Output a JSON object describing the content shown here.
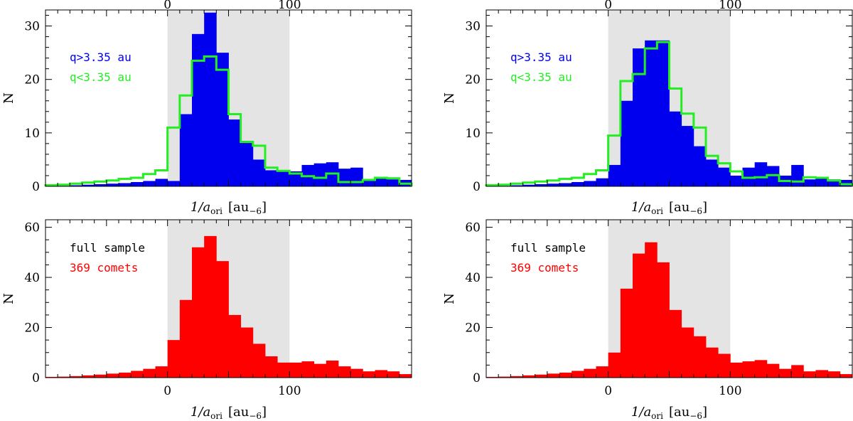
{
  "figure": {
    "shade_range": [
      0,
      100
    ],
    "xlim": [
      -100,
      200
    ],
    "colors": {
      "blue": "#0000ee",
      "green": "#22ee22",
      "red": "#ff0000",
      "shade": "#e4e4e4"
    }
  },
  "chart_data": [
    {
      "id": "tl",
      "type": "bar",
      "ylabel": "N",
      "xlabel": {
        "main": "1/a",
        "sub": "ori",
        "unit": "[au",
        "unit_sub": "−6",
        "close": "]"
      },
      "ylim": [
        0,
        33
      ],
      "yticks": [
        "0",
        "10",
        "20",
        "30"
      ],
      "xticks_top": [
        "0",
        "100"
      ],
      "xticks_bottom": [],
      "legend": [
        {
          "text": "q>3.35 au",
          "color": "#0000ee"
        },
        {
          "text": "q<3.35 au",
          "color": "#22ee22"
        }
      ],
      "bin_edges": [
        -100,
        -90,
        -80,
        -70,
        -60,
        -50,
        -40,
        -30,
        -20,
        -10,
        0,
        10,
        20,
        30,
        40,
        50,
        60,
        70,
        80,
        90,
        100,
        110,
        120,
        130,
        140,
        150,
        160,
        170,
        180,
        190,
        200
      ],
      "series": [
        {
          "name": "q>3.35 au",
          "style": "filled",
          "color": "#0000ee",
          "values": [
            0.1,
            0.1,
            0.2,
            0.3,
            0.4,
            0.5,
            0.6,
            0.8,
            1.0,
            1.4,
            1.0,
            13.5,
            28.5,
            32.5,
            25.0,
            12.5,
            8.5,
            5.0,
            3.0,
            2.8,
            2.8,
            4.0,
            4.3,
            4.5,
            3.3,
            3.5,
            1.0,
            1.7,
            1.3,
            1.2
          ]
        },
        {
          "name": "q<3.35 au",
          "style": "step",
          "color": "#22ee22",
          "values": [
            0.2,
            0.3,
            0.5,
            0.7,
            0.9,
            1.1,
            1.4,
            1.6,
            2.3,
            3.0,
            11.0,
            17.0,
            23.5,
            24.3,
            21.8,
            13.5,
            8.3,
            7.6,
            3.5,
            2.9,
            2.4,
            1.9,
            1.6,
            2.4,
            0.8,
            0.8,
            1.2,
            1.6,
            1.5,
            0.5
          ]
        }
      ]
    },
    {
      "id": "tr",
      "type": "bar",
      "ylabel": "N",
      "xlabel": {
        "main": "1/a",
        "sub": "ori",
        "unit": "[au",
        "unit_sub": "−6",
        "close": "]"
      },
      "ylim": [
        0,
        33
      ],
      "yticks": [
        "0",
        "10",
        "20",
        "30"
      ],
      "xticks_top": [
        "0",
        "100"
      ],
      "xticks_bottom": [],
      "legend": [
        {
          "text": "q>3.35 au",
          "color": "#0000ee"
        },
        {
          "text": "q<3.35 au",
          "color": "#22ee22"
        }
      ],
      "bin_edges": [
        -100,
        -90,
        -80,
        -70,
        -60,
        -50,
        -40,
        -30,
        -20,
        -10,
        0,
        10,
        20,
        30,
        40,
        50,
        60,
        70,
        80,
        90,
        100,
        110,
        120,
        130,
        140,
        150,
        160,
        170,
        180,
        190,
        200
      ],
      "series": [
        {
          "name": "q>3.35 au",
          "style": "filled",
          "color": "#0000ee",
          "values": [
            0.1,
            0.1,
            0.2,
            0.3,
            0.4,
            0.5,
            0.6,
            0.8,
            1.0,
            1.5,
            4.0,
            16.0,
            25.8,
            27.3,
            27.3,
            14.0,
            11.3,
            7.5,
            5.0,
            3.5,
            2.0,
            3.5,
            4.5,
            3.8,
            2.0,
            4.0,
            1.3,
            1.5,
            1.3,
            1.2
          ]
        },
        {
          "name": "q<3.35 au",
          "style": "step",
          "color": "#22ee22",
          "values": [
            0.2,
            0.3,
            0.5,
            0.7,
            0.9,
            1.1,
            1.4,
            1.6,
            2.3,
            3.0,
            9.5,
            19.7,
            21.0,
            25.8,
            27.0,
            18.3,
            13.6,
            11.0,
            5.7,
            4.3,
            2.8,
            1.6,
            1.7,
            2.1,
            1.0,
            0.9,
            1.7,
            1.6,
            1.1,
            0.4
          ]
        }
      ]
    },
    {
      "id": "bl",
      "type": "bar",
      "ylabel": "N",
      "xlabel": {
        "main": "1/a",
        "sub": "ori",
        "unit": "[au",
        "unit_sub": "−6",
        "close": "]"
      },
      "ylim": [
        0,
        63
      ],
      "yticks": [
        "0",
        "20",
        "40",
        "60"
      ],
      "xticks_top": [],
      "xticks_bottom": [
        "0",
        "100"
      ],
      "legend": [
        {
          "text": "full sample",
          "color": "#000000"
        },
        {
          "text": "369 comets",
          "color": "#ff0000"
        }
      ],
      "bin_edges": [
        -100,
        -90,
        -80,
        -70,
        -60,
        -50,
        -40,
        -30,
        -20,
        -10,
        0,
        10,
        20,
        30,
        40,
        50,
        60,
        70,
        80,
        90,
        100,
        110,
        120,
        130,
        140,
        150,
        160,
        170,
        180,
        190,
        200
      ],
      "series": [
        {
          "name": "full sample",
          "style": "filled",
          "color": "#ff0000",
          "values": [
            0.3,
            0.4,
            0.6,
            0.9,
            1.2,
            1.6,
            2.0,
            2.7,
            3.5,
            4.5,
            15.0,
            31.0,
            52.0,
            56.5,
            46.5,
            25.0,
            20.0,
            13.5,
            8.5,
            6.0,
            6.0,
            6.5,
            5.5,
            6.8,
            4.5,
            3.5,
            2.5,
            3.0,
            2.5,
            1.4
          ]
        }
      ]
    },
    {
      "id": "br",
      "type": "bar",
      "ylabel": "N",
      "xlabel": {
        "main": "1/a",
        "sub": "ori",
        "unit": "[au",
        "unit_sub": "−6",
        "close": "]"
      },
      "ylim": [
        0,
        63
      ],
      "yticks": [
        "0",
        "20",
        "40",
        "60"
      ],
      "xticks_top": [],
      "xticks_bottom": [
        "0",
        "100"
      ],
      "legend": [
        {
          "text": "full sample",
          "color": "#000000"
        },
        {
          "text": "369 comets",
          "color": "#ff0000"
        }
      ],
      "bin_edges": [
        -100,
        -90,
        -80,
        -70,
        -60,
        -50,
        -40,
        -30,
        -20,
        -10,
        0,
        10,
        20,
        30,
        40,
        50,
        60,
        70,
        80,
        90,
        100,
        110,
        120,
        130,
        140,
        150,
        160,
        170,
        180,
        190,
        200
      ],
      "series": [
        {
          "name": "full sample",
          "style": "filled",
          "color": "#ff0000",
          "values": [
            0.3,
            0.4,
            0.6,
            0.9,
            1.2,
            1.6,
            2.0,
            2.7,
            3.5,
            4.5,
            10.0,
            35.5,
            49.5,
            54.0,
            46.0,
            27.0,
            20.0,
            16.5,
            12.0,
            9.5,
            6.0,
            6.5,
            7.0,
            5.5,
            3.5,
            5.0,
            2.5,
            3.0,
            2.5,
            1.4
          ]
        }
      ]
    }
  ]
}
